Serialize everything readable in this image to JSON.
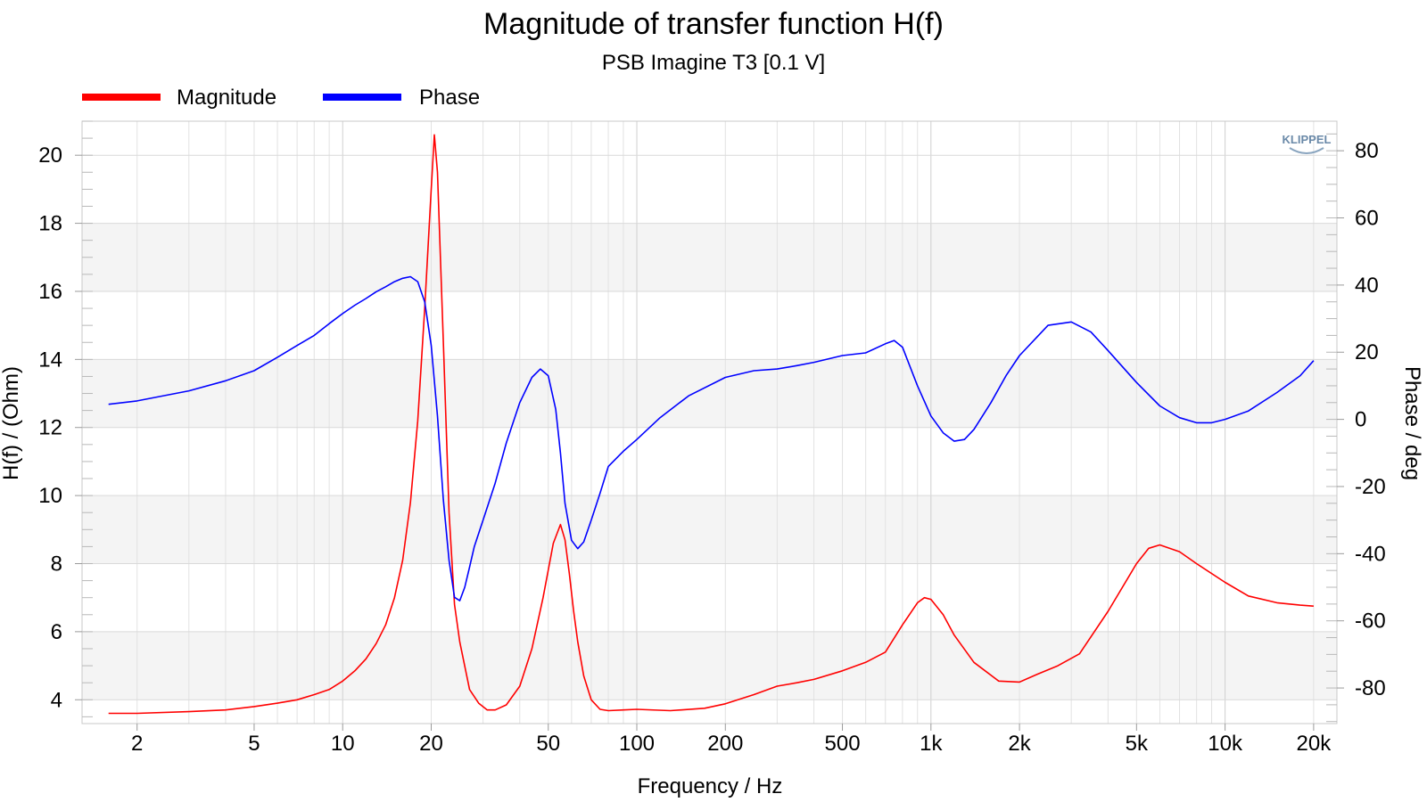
{
  "chart_data": {
    "type": "line",
    "title": "Magnitude of transfer function H(f)",
    "subtitle": "PSB Imagine T3 [0.1 V]",
    "xlabel": "Frequency / Hz",
    "ylabel_left": "H(f) / (Ohm)",
    "ylabel_right": "Phase / deg",
    "x_scale": "log",
    "xlim": [
      1.3,
      24000
    ],
    "ylim_left": [
      3.3,
      21.0
    ],
    "ylim_right": [
      -90.6,
      88.8
    ],
    "x_ticks": [
      {
        "value": 2,
        "label": "2"
      },
      {
        "value": 5,
        "label": "5"
      },
      {
        "value": 10,
        "label": "10"
      },
      {
        "value": 20,
        "label": "20"
      },
      {
        "value": 50,
        "label": "50"
      },
      {
        "value": 100,
        "label": "100"
      },
      {
        "value": 200,
        "label": "200"
      },
      {
        "value": 500,
        "label": "500"
      },
      {
        "value": 1000,
        "label": "1k"
      },
      {
        "value": 2000,
        "label": "2k"
      },
      {
        "value": 5000,
        "label": "5k"
      },
      {
        "value": 10000,
        "label": "10k"
      },
      {
        "value": 20000,
        "label": "20k"
      }
    ],
    "y_ticks_left": [
      4,
      6,
      8,
      10,
      12,
      14,
      16,
      18,
      20
    ],
    "y_ticks_right": [
      -80,
      -60,
      -40,
      -20,
      0,
      20,
      40,
      60,
      80
    ],
    "grid": true,
    "legend_position": "top-left",
    "watermark": "KLIPPEL",
    "series": [
      {
        "name": "Magnitude",
        "axis": "left",
        "color": "#ff0000",
        "x": [
          1.6,
          2.0,
          3.0,
          4.0,
          5.0,
          6.0,
          7.0,
          8.0,
          9.0,
          10.0,
          11.0,
          12.0,
          13.0,
          14.0,
          15.0,
          16.0,
          17.0,
          18.0,
          19.0,
          20.0,
          20.5,
          21.0,
          22.0,
          23.0,
          24.0,
          25.0,
          27.0,
          29.0,
          31.0,
          33.0,
          36.0,
          40.0,
          44.0,
          48.0,
          52.0,
          55.0,
          57.0,
          59.0,
          61.0,
          63.0,
          66.0,
          70.0,
          75.0,
          80.0,
          90.0,
          100.0,
          130.0,
          170.0,
          200.0,
          250.0,
          300.0,
          350.0,
          400.0,
          500.0,
          600.0,
          700.0,
          800.0,
          900.0,
          950.0,
          1000.0,
          1100.0,
          1200.0,
          1400.0,
          1700.0,
          2000.0,
          2300.0,
          2700.0,
          3200.0,
          4000.0,
          5000.0,
          5500.0,
          6000.0,
          7000.0,
          8000.0,
          10000.0,
          12000.0,
          15000.0,
          18000.0,
          20000.0
        ],
        "values": [
          3.6,
          3.6,
          3.65,
          3.7,
          3.8,
          3.9,
          4.0,
          4.15,
          4.3,
          4.55,
          4.85,
          5.2,
          5.65,
          6.2,
          7.0,
          8.1,
          9.8,
          12.2,
          15.5,
          19.0,
          20.6,
          19.5,
          14.5,
          9.5,
          6.8,
          5.7,
          4.3,
          3.9,
          3.7,
          3.7,
          3.85,
          4.4,
          5.5,
          7.0,
          8.6,
          9.15,
          8.7,
          7.7,
          6.6,
          5.7,
          4.7,
          4.0,
          3.72,
          3.68,
          3.7,
          3.72,
          3.68,
          3.75,
          3.88,
          4.15,
          4.4,
          4.5,
          4.6,
          4.85,
          5.1,
          5.4,
          6.2,
          6.85,
          7.0,
          6.95,
          6.5,
          5.9,
          5.1,
          4.55,
          4.52,
          4.75,
          5.0,
          5.35,
          6.6,
          8.0,
          8.45,
          8.55,
          8.35,
          8.0,
          7.45,
          7.05,
          6.85,
          6.78,
          6.75
        ]
      },
      {
        "name": "Phase",
        "axis": "right",
        "color": "#0000ff",
        "x": [
          1.6,
          2.0,
          3.0,
          4.0,
          5.0,
          6.0,
          7.0,
          8.0,
          9.0,
          10.0,
          11.0,
          12.0,
          13.0,
          14.0,
          15.0,
          16.0,
          17.0,
          18.0,
          19.0,
          20.0,
          21.0,
          22.0,
          23.0,
          24.0,
          25.0,
          26.0,
          27.0,
          28.0,
          30.0,
          33.0,
          36.0,
          40.0,
          44.0,
          47.0,
          50.0,
          53.0,
          55.0,
          57.0,
          60.0,
          63.0,
          66.0,
          70.0,
          75.0,
          80.0,
          90.0,
          100.0,
          120.0,
          150.0,
          200.0,
          250.0,
          300.0,
          350.0,
          400.0,
          500.0,
          600.0,
          700.0,
          750.0,
          800.0,
          900.0,
          1000.0,
          1100.0,
          1200.0,
          1300.0,
          1400.0,
          1600.0,
          1800.0,
          2000.0,
          2500.0,
          3000.0,
          3500.0,
          4000.0,
          5000.0,
          6000.0,
          7000.0,
          8000.0,
          9000.0,
          10000.0,
          12000.0,
          15000.0,
          18000.0,
          20000.0
        ],
        "values": [
          4.5,
          5.5,
          8.5,
          11.5,
          14.5,
          18.5,
          22.0,
          25.0,
          28.5,
          31.5,
          34.0,
          36.0,
          38.0,
          39.5,
          41.0,
          42.0,
          42.5,
          41.0,
          35.0,
          22.0,
          1.0,
          -24.0,
          -42.0,
          -53.0,
          -54.0,
          -50.0,
          -44.0,
          -38.0,
          -30.0,
          -19.0,
          -7.0,
          5.0,
          12.5,
          15.0,
          13.0,
          3.0,
          -10.0,
          -25.0,
          -36.0,
          -38.5,
          -36.5,
          -30.0,
          -22.0,
          -14.0,
          -9.5,
          -6.0,
          0.5,
          7.0,
          12.5,
          14.5,
          15.0,
          16.0,
          17.0,
          19.0,
          19.8,
          22.5,
          23.5,
          21.5,
          10.0,
          1.0,
          -4.0,
          -6.5,
          -6.0,
          -3.0,
          5.0,
          13.0,
          19.0,
          28.0,
          29.0,
          26.0,
          20.5,
          11.0,
          4.0,
          0.5,
          -1.0,
          -1.0,
          0.0,
          2.5,
          8.0,
          13.0,
          17.5
        ]
      }
    ]
  }
}
